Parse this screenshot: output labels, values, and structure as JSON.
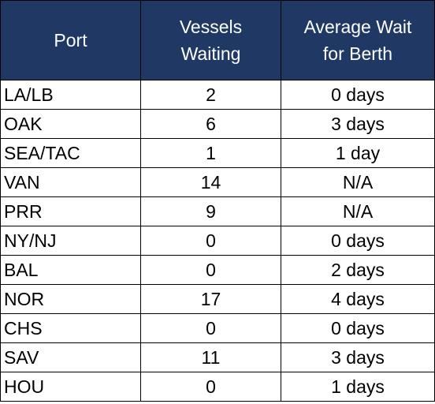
{
  "headers": {
    "port": "Port",
    "vessels": [
      "Vessels",
      "Waiting"
    ],
    "wait": [
      "Average Wait",
      "for Berth"
    ]
  },
  "rows": [
    {
      "port": "LA/LB",
      "vessels": "2",
      "wait": "0 days"
    },
    {
      "port": "OAK",
      "vessels": "6",
      "wait": "3 days"
    },
    {
      "port": "SEA/TAC",
      "vessels": "1",
      "wait": "1 day"
    },
    {
      "port": "VAN",
      "vessels": "14",
      "wait": "N/A"
    },
    {
      "port": "PRR",
      "vessels": "9",
      "wait": "N/A"
    },
    {
      "port": "NY/NJ",
      "vessels": "0",
      "wait": "0 days"
    },
    {
      "port": "BAL",
      "vessels": "0",
      "wait": "2 days"
    },
    {
      "port": "NOR",
      "vessels": "17",
      "wait": "4 days"
    },
    {
      "port": "CHS",
      "vessels": "0",
      "wait": "0 days"
    },
    {
      "port": "SAV",
      "vessels": "11",
      "wait": "3 days"
    },
    {
      "port": "HOU",
      "vessels": "0",
      "wait": "1 days"
    }
  ],
  "colors": {
    "header_bg": "#1f3864",
    "header_text": "#ffffff",
    "border": "#000000"
  }
}
